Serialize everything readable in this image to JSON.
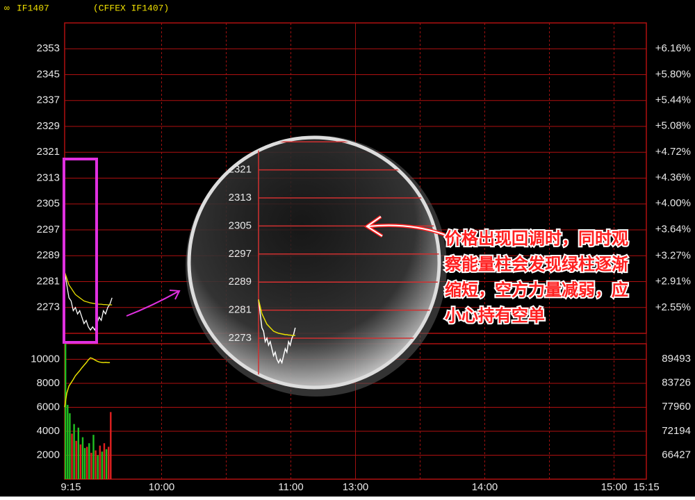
{
  "header": {
    "symbol": "IF1407",
    "exchange": "(CFFEX IF1407)"
  },
  "chart_data": [
    {
      "type": "line",
      "x": [
        0,
        1,
        2,
        3,
        4,
        5,
        6,
        7,
        8,
        9,
        10,
        11,
        12,
        13,
        14,
        15,
        16,
        17,
        18,
        19,
        20,
        21,
        22
      ],
      "series": [
        {
          "color": "#ffffff",
          "values": [
            2284,
            2280,
            2276,
            2275,
            2272,
            2273,
            2271,
            2272,
            2270,
            2268,
            2269,
            2267,
            2266,
            2267,
            2266,
            2268,
            2270,
            2269,
            2272,
            2271,
            2273,
            2274,
            2276
          ]
        },
        {
          "color": "#e8e000",
          "values": [
            2284,
            2282,
            2280,
            2279,
            2278,
            2277,
            2276.5,
            2276,
            2275.5,
            2275,
            2274.8,
            2274.6,
            2274.4,
            2274.3,
            2274.2,
            2274.1,
            2274,
            2274,
            2273.9,
            2273.9,
            2273.8,
            2273.8,
            2273.8
          ]
        }
      ],
      "xlim": [
        0,
        270
      ],
      "ylim": [
        2265,
        2361
      ],
      "yticks": [
        2353,
        2345,
        2337,
        2329,
        2321,
        2313,
        2305,
        2297,
        2289,
        2281,
        2273
      ],
      "y2lim": [
        2.19,
        6.52
      ],
      "y2ticks": [
        {
          "value": 6.16,
          "label": "+6.16%"
        },
        {
          "value": 5.8,
          "label": "+5.80%"
        },
        {
          "value": 5.44,
          "label": "+5.44%"
        },
        {
          "value": 5.08,
          "label": "+5.08%"
        },
        {
          "value": 4.72,
          "label": "+4.72%"
        },
        {
          "value": 4.36,
          "label": "+4.36%"
        },
        {
          "value": 4.0,
          "label": "+4.00%"
        },
        {
          "value": 3.64,
          "label": "+3.64%"
        },
        {
          "value": 3.27,
          "label": "+3.27%"
        },
        {
          "value": 2.91,
          "label": "+2.91%"
        },
        {
          "value": 2.55,
          "label": "+2.55%"
        }
      ],
      "grid": true
    },
    {
      "type": "bar",
      "x": [
        0,
        1,
        2,
        3,
        4,
        5,
        6,
        7,
        8,
        9,
        10,
        11,
        12,
        13,
        14,
        15,
        16,
        17,
        18,
        19,
        20,
        21
      ],
      "series": [
        {
          "type": "bar",
          "values": [
            11300,
            6200,
            5500,
            3800,
            4600,
            3200,
            4300,
            2900,
            3500,
            2600,
            2700,
            3000,
            2200,
            3700,
            2400,
            2000,
            2800,
            2300,
            3000,
            2500,
            2700,
            5600
          ],
          "colors": [
            "#22c022",
            "#22c022",
            "#22c022",
            "#e02020",
            "#22c022",
            "#e02020",
            "#22c022",
            "#e02020",
            "#22c022",
            "#22c022",
            "#e02020",
            "#22c022",
            "#e02020",
            "#22c022",
            "#e02020",
            "#22c022",
            "#e02020",
            "#22c022",
            "#e02020",
            "#22c022",
            "#e02020",
            "#e02020"
          ]
        },
        {
          "type": "line",
          "axis": "y2",
          "color": "#e8e000",
          "values": [
            77960,
            81300,
            83000,
            83800,
            84600,
            85500,
            86100,
            86700,
            87400,
            88000,
            88600,
            89300,
            89800,
            89600,
            89300,
            89000,
            88800,
            88700,
            88650,
            88700,
            88650,
            88650
          ]
        }
      ],
      "xlim": [
        0,
        270
      ],
      "ylim": [
        0,
        11300
      ],
      "yticks": [
        10000,
        8000,
        6000,
        4000,
        2000
      ],
      "y2lim": [
        60661,
        93170
      ],
      "y2ticks": [
        89493,
        83726,
        77960,
        72194,
        66427
      ],
      "xticks": [
        {
          "value": 0,
          "label": "9:15"
        },
        {
          "value": 45,
          "label": "10:00"
        },
        {
          "value": 105,
          "label": "11:00"
        },
        {
          "value": 135,
          "label": "13:00"
        },
        {
          "value": 195,
          "label": "14:00"
        },
        {
          "value": 255,
          "label": "15:00"
        },
        {
          "value": 270,
          "label": "15:15"
        }
      ],
      "xgrid": [
        {
          "value": 0,
          "dash": false
        },
        {
          "value": 45,
          "dash": true
        },
        {
          "value": 75,
          "dash": true
        },
        {
          "value": 105,
          "dash": true
        },
        {
          "value": 135,
          "dash": false
        },
        {
          "value": 165,
          "dash": true
        },
        {
          "value": 195,
          "dash": true
        },
        {
          "value": 225,
          "dash": true
        },
        {
          "value": 255,
          "dash": true
        },
        {
          "value": 270,
          "dash": false
        }
      ],
      "grid": true
    }
  ],
  "annotation": {
    "lines": [
      "价格出现回调时，同时观",
      "察能量柱会发现绿柱逐渐",
      "缩短，空方力量减弱，应",
      "小心持有空单"
    ]
  }
}
